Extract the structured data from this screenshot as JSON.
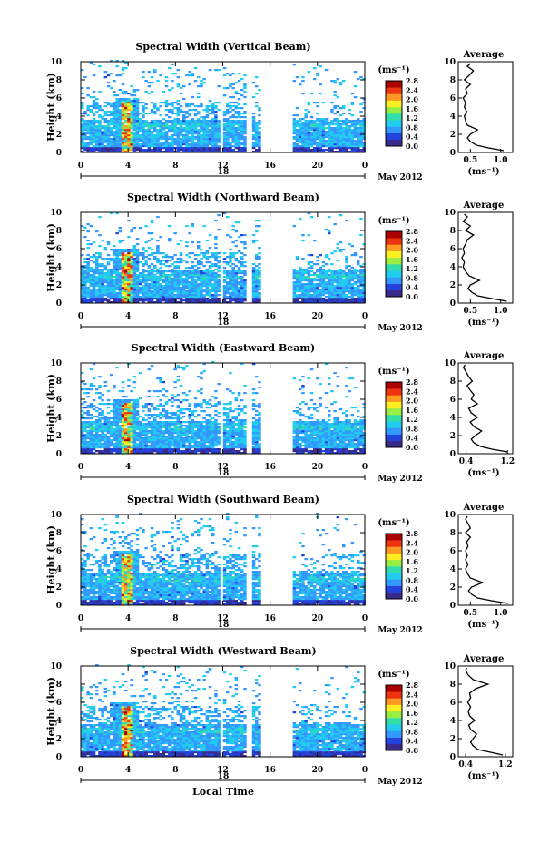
{
  "chart_data": [
    {
      "type": "heatmap",
      "title": "Spectral Width (Vertical Beam)",
      "ylabel": "Height (km)",
      "yticks": [
        "0",
        "2",
        "4",
        "6",
        "8",
        "10"
      ],
      "ylim": [
        0,
        10
      ],
      "xticks": [
        "0",
        "4",
        "8",
        "12",
        "16",
        "20",
        "0"
      ],
      "xlim": [
        0,
        24
      ],
      "day_label": "18",
      "month_label": "May 2012",
      "colorbar": {
        "unit": "(ms⁻¹)",
        "ticks": [
          "0.0",
          "0.4",
          "0.8",
          "1.2",
          "1.6",
          "2.0",
          "2.4",
          "2.8"
        ],
        "range": [
          0,
          2.8
        ]
      },
      "profile": {
        "title": "Average",
        "xticks": [
          "0.5",
          "1.0"
        ],
        "xlim": [
          0.3,
          1.2
        ],
        "xlabel": "(ms⁻¹)",
        "heights": [
          0.2,
          0.5,
          0.8,
          1.2,
          1.6,
          2.0,
          2.5,
          3.0,
          3.5,
          4.0,
          4.5,
          5.0,
          5.5,
          6.0,
          6.5,
          7.0,
          7.5,
          8.0,
          8.5,
          9.0,
          9.5,
          9.8
        ],
        "values": [
          1.05,
          0.8,
          0.6,
          0.5,
          0.45,
          0.5,
          0.62,
          0.45,
          0.42,
          0.4,
          0.44,
          0.4,
          0.42,
          0.38,
          0.45,
          0.42,
          0.5,
          0.4,
          0.48,
          0.55,
          0.45,
          0.5
        ]
      }
    },
    {
      "type": "heatmap",
      "title": "Spectral Width (Northward Beam)",
      "ylabel": "Height (km)",
      "yticks": [
        "0",
        "2",
        "4",
        "6",
        "8",
        "10"
      ],
      "ylim": [
        0,
        10
      ],
      "xticks": [
        "0",
        "4",
        "8",
        "12",
        "16",
        "20",
        "0"
      ],
      "xlim": [
        0,
        24
      ],
      "day_label": "18",
      "month_label": "May 2012",
      "colorbar": {
        "unit": "(ms⁻¹)",
        "ticks": [
          "0.0",
          "0.4",
          "0.8",
          "1.2",
          "1.6",
          "2.0",
          "2.4",
          "2.8"
        ],
        "range": [
          0,
          2.8
        ]
      },
      "profile": {
        "title": "Average",
        "xticks": [
          "0.5",
          "1.0"
        ],
        "xlim": [
          0.3,
          1.2
        ],
        "xlabel": "(ms⁻¹)",
        "heights": [
          0.2,
          0.5,
          0.8,
          1.2,
          1.6,
          2.0,
          2.5,
          3.0,
          3.5,
          4.0,
          4.5,
          5.0,
          5.5,
          6.0,
          6.5,
          7.0,
          7.5,
          8.0,
          8.5,
          9.0,
          9.5,
          9.8
        ],
        "values": [
          1.1,
          0.85,
          0.62,
          0.52,
          0.46,
          0.5,
          0.65,
          0.48,
          0.42,
          0.38,
          0.4,
          0.36,
          0.4,
          0.38,
          0.42,
          0.45,
          0.55,
          0.42,
          0.5,
          0.38,
          0.45,
          0.4
        ]
      }
    },
    {
      "type": "heatmap",
      "title": "Spectral Width (Eastward Beam)",
      "ylabel": "Height (km)",
      "yticks": [
        "0",
        "2",
        "4",
        "6",
        "8",
        "10"
      ],
      "ylim": [
        0,
        10
      ],
      "xticks": [
        "0",
        "4",
        "8",
        "12",
        "16",
        "20",
        "0"
      ],
      "xlim": [
        0,
        24
      ],
      "day_label": "18",
      "month_label": "May 2012",
      "colorbar": {
        "unit": "(ms⁻¹)",
        "ticks": [
          "0.0",
          "0.4",
          "0.8",
          "1.2",
          "1.6",
          "2.0",
          "2.4",
          "2.8"
        ],
        "range": [
          0,
          2.8
        ]
      },
      "profile": {
        "title": "Average",
        "xticks": [
          "0.4",
          "1.2"
        ],
        "xlim": [
          0.25,
          1.3
        ],
        "xlabel": "(ms⁻¹)",
        "heights": [
          0.2,
          0.5,
          0.8,
          1.2,
          1.6,
          2.0,
          2.5,
          3.0,
          3.5,
          4.0,
          4.5,
          5.0,
          5.5,
          6.0,
          6.5,
          7.0,
          7.5,
          8.0,
          8.5,
          9.0,
          9.5,
          9.8
        ],
        "values": [
          1.2,
          0.9,
          0.68,
          0.55,
          0.5,
          0.58,
          0.7,
          0.55,
          0.48,
          0.62,
          0.5,
          0.45,
          0.62,
          0.5,
          0.55,
          0.48,
          0.42,
          0.52,
          0.45,
          0.4,
          0.35,
          0.38
        ]
      }
    },
    {
      "type": "heatmap",
      "title": "Spectral Width (Southward Beam)",
      "ylabel": "Height (km)",
      "yticks": [
        "0",
        "2",
        "4",
        "6",
        "8",
        "10"
      ],
      "ylim": [
        0,
        10
      ],
      "xticks": [
        "0",
        "4",
        "8",
        "12",
        "16",
        "20",
        "0"
      ],
      "xlim": [
        0,
        24
      ],
      "day_label": "18",
      "month_label": "May 2012",
      "colorbar": {
        "unit": "(ms⁻¹)",
        "ticks": [
          "0.0",
          "0.4",
          "0.8",
          "1.2",
          "1.6",
          "2.0",
          "2.4",
          "2.8"
        ],
        "range": [
          0,
          2.8
        ]
      },
      "profile": {
        "title": "Average",
        "xticks": [
          "0.5",
          "1.0"
        ],
        "xlim": [
          0.3,
          1.2
        ],
        "xlabel": "(ms⁻¹)",
        "heights": [
          0.2,
          0.5,
          0.8,
          1.2,
          1.6,
          2.0,
          2.5,
          3.0,
          3.5,
          4.0,
          4.5,
          5.0,
          5.5,
          6.0,
          6.5,
          7.0,
          7.5,
          8.0,
          8.5,
          9.0,
          9.5,
          9.8
        ],
        "values": [
          1.12,
          0.85,
          0.62,
          0.52,
          0.47,
          0.52,
          0.7,
          0.5,
          0.45,
          0.42,
          0.46,
          0.42,
          0.45,
          0.42,
          0.46,
          0.44,
          0.5,
          0.42,
          0.5,
          0.46,
          0.42,
          0.45
        ]
      }
    },
    {
      "type": "heatmap",
      "title": "Spectral Width (Westward Beam)",
      "ylabel": "Height (km)",
      "yticks": [
        "0",
        "2",
        "4",
        "6",
        "8",
        "10"
      ],
      "ylim": [
        0,
        10
      ],
      "xticks": [
        "0",
        "4",
        "8",
        "12",
        "16",
        "20",
        "0"
      ],
      "xlim": [
        0,
        24
      ],
      "day_label": "18",
      "month_label": "May 2012",
      "xlabel": "Local Time",
      "colorbar": {
        "unit": "(ms⁻¹)",
        "ticks": [
          "0.0",
          "0.4",
          "0.8",
          "1.2",
          "1.6",
          "2.0",
          "2.4",
          "2.8"
        ],
        "range": [
          0,
          2.8
        ]
      },
      "profile": {
        "title": "Average",
        "xticks": [
          "0.4",
          "1.2"
        ],
        "xlim": [
          0.25,
          1.35
        ],
        "xlabel": "(ms⁻¹)",
        "heights": [
          0.2,
          0.5,
          0.8,
          1.2,
          1.6,
          2.0,
          2.5,
          3.0,
          3.5,
          4.0,
          4.5,
          5.0,
          5.5,
          6.0,
          6.5,
          7.0,
          7.5,
          8.0,
          8.5,
          9.0,
          9.5,
          9.8
        ],
        "values": [
          1.15,
          0.9,
          0.65,
          0.55,
          0.5,
          0.55,
          0.62,
          0.5,
          0.46,
          0.58,
          0.48,
          0.45,
          0.5,
          0.44,
          0.5,
          0.48,
          0.6,
          0.85,
          0.55,
          0.45,
          0.4,
          0.42
        ]
      }
    }
  ],
  "colors": {
    "scale": [
      "#3a2a8a",
      "#2244dd",
      "#3399ff",
      "#22ccee",
      "#33ddaa",
      "#99ee44",
      "#ffee22",
      "#ff9922",
      "#ee3311",
      "#aa0000"
    ]
  }
}
